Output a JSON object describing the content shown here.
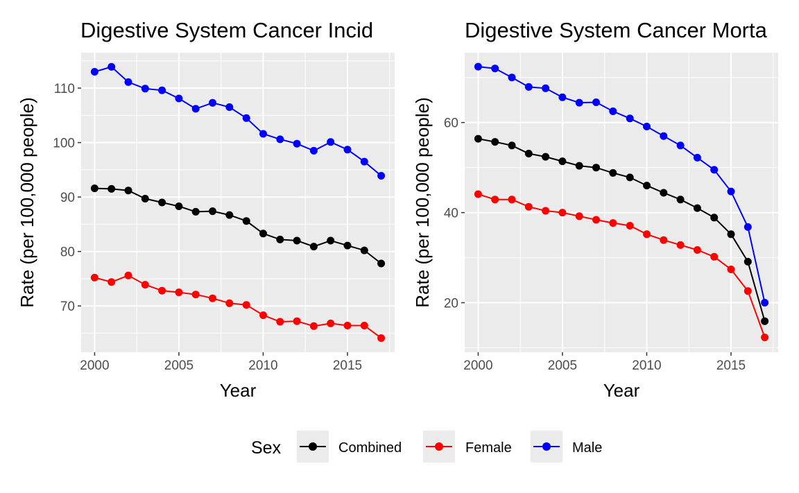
{
  "legend": {
    "title": "Sex",
    "entries": [
      {
        "label": "Combined",
        "color": "#000000"
      },
      {
        "label": "Female",
        "color": "#ff0000"
      },
      {
        "label": "Male",
        "color": "#0000ff"
      }
    ]
  },
  "chart_data": [
    {
      "type": "line",
      "title": "Digestive System Cancer Incid",
      "xlabel": "Year",
      "ylabel": "Rate (per 100,000 people)",
      "xlim": [
        1999.2,
        2017.8
      ],
      "ylim": [
        61.5,
        116.5
      ],
      "xticks": [
        2000,
        2005,
        2010,
        2015
      ],
      "yticks": [
        70,
        80,
        90,
        100,
        110
      ],
      "x": [
        2000,
        2001,
        2002,
        2003,
        2004,
        2005,
        2006,
        2007,
        2008,
        2009,
        2010,
        2011,
        2012,
        2013,
        2014,
        2015,
        2016,
        2017
      ],
      "series": [
        {
          "name": "Combined",
          "color": "#000000",
          "values": [
            91.6,
            91.5,
            91.2,
            89.7,
            89.0,
            88.3,
            87.3,
            87.4,
            86.7,
            85.6,
            83.3,
            82.2,
            82.0,
            80.9,
            82.0,
            81.1,
            80.2,
            77.8
          ]
        },
        {
          "name": "Female",
          "color": "#ff0000",
          "values": [
            75.2,
            74.4,
            75.6,
            73.9,
            72.8,
            72.5,
            72.1,
            71.4,
            70.5,
            70.2,
            68.3,
            67.1,
            67.2,
            66.3,
            66.8,
            66.4,
            66.4,
            64.1
          ]
        },
        {
          "name": "Male",
          "color": "#0000ff",
          "values": [
            113.0,
            113.9,
            111.1,
            109.9,
            109.6,
            108.1,
            106.2,
            107.3,
            106.5,
            104.5,
            101.6,
            100.6,
            99.8,
            98.5,
            100.1,
            98.7,
            96.5,
            93.9
          ]
        }
      ]
    },
    {
      "type": "line",
      "title": "Digestive System Cancer Morta",
      "xlabel": "Year",
      "ylabel": "Rate (per 100,000 people)",
      "xlim": [
        1999.2,
        2017.8
      ],
      "ylim": [
        9.0,
        75.5
      ],
      "xticks": [
        2000,
        2005,
        2010,
        2015
      ],
      "yticks": [
        20,
        40,
        60
      ],
      "x": [
        2000,
        2001,
        2002,
        2003,
        2004,
        2005,
        2006,
        2007,
        2008,
        2009,
        2010,
        2011,
        2012,
        2013,
        2014,
        2015,
        2016,
        2017
      ],
      "series": [
        {
          "name": "Combined",
          "color": "#000000",
          "values": [
            56.4,
            55.7,
            54.9,
            53.1,
            52.4,
            51.4,
            50.4,
            50.0,
            48.8,
            47.8,
            46.0,
            44.4,
            42.9,
            41.0,
            38.9,
            35.2,
            29.1,
            15.9
          ]
        },
        {
          "name": "Female",
          "color": "#ff0000",
          "values": [
            44.1,
            42.9,
            42.9,
            41.3,
            40.4,
            40.0,
            39.2,
            38.4,
            37.7,
            37.1,
            35.2,
            33.9,
            32.8,
            31.7,
            30.2,
            27.4,
            22.6,
            12.3
          ]
        },
        {
          "name": "Male",
          "color": "#0000ff",
          "values": [
            72.4,
            72.0,
            70.0,
            67.9,
            67.6,
            65.6,
            64.4,
            64.5,
            62.5,
            60.9,
            59.1,
            57.0,
            54.9,
            52.2,
            49.5,
            44.7,
            36.8,
            20.0
          ]
        }
      ]
    }
  ]
}
